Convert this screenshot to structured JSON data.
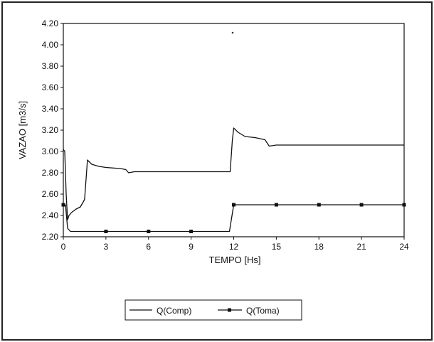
{
  "chart_data": {
    "type": "line",
    "title": "",
    "xlabel": "TEMPO [Hs]",
    "ylabel": "VAZAO [m3/s]",
    "xlim": [
      0,
      24
    ],
    "ylim": [
      2.2,
      4.2
    ],
    "x_ticks": [
      0,
      3,
      6,
      9,
      12,
      15,
      18,
      21,
      24
    ],
    "x_tick_labels": [
      "0",
      "3",
      "6",
      "9",
      "12",
      "15",
      "18",
      "21",
      "24"
    ],
    "y_ticks": [
      2.2,
      2.4,
      2.6,
      2.8,
      3.0,
      3.2,
      3.4,
      3.6,
      3.8,
      4.0,
      4.2
    ],
    "y_tick_labels": [
      "2.20",
      "2.40",
      "2.60",
      "2.80",
      "3.00",
      "3.20",
      "3.40",
      "3.60",
      "3.80",
      "4.00",
      "4.20"
    ],
    "grid": false,
    "legend_position": "bottom-center",
    "series": [
      {
        "name": "Q(Comp)",
        "color": "#111111",
        "marker": "none",
        "x": [
          0,
          0.1,
          0.2,
          0.3,
          0.4,
          0.6,
          0.9,
          1.2,
          1.5,
          1.7,
          2.0,
          2.5,
          3.0,
          3.5,
          4.0,
          4.4,
          4.6,
          5,
          6,
          7,
          8,
          9,
          10,
          11,
          11.75,
          11.9,
          12.0,
          12.3,
          12.8,
          13.5,
          14.2,
          14.5,
          15,
          16,
          18,
          20,
          22,
          24
        ],
        "y": [
          3.02,
          3.0,
          2.6,
          2.36,
          2.4,
          2.43,
          2.46,
          2.48,
          2.55,
          2.92,
          2.88,
          2.86,
          2.85,
          2.845,
          2.84,
          2.83,
          2.8,
          2.81,
          2.81,
          2.81,
          2.81,
          2.81,
          2.81,
          2.81,
          2.81,
          3.1,
          3.22,
          3.18,
          3.14,
          3.13,
          3.11,
          3.05,
          3.06,
          3.06,
          3.06,
          3.06,
          3.06,
          3.06
        ]
      },
      {
        "name": "Q(Toma)",
        "color": "#111111",
        "marker": "square",
        "x": [
          0,
          0.15,
          0.3,
          0.5,
          3,
          6,
          9,
          11.7,
          12,
          15,
          18,
          21,
          24
        ],
        "y": [
          2.5,
          2.5,
          2.28,
          2.25,
          2.25,
          2.25,
          2.25,
          2.25,
          2.5,
          2.5,
          2.5,
          2.5,
          2.5
        ],
        "marker_x": [
          0,
          3,
          6,
          9,
          12,
          15,
          18,
          21,
          24
        ]
      }
    ]
  }
}
